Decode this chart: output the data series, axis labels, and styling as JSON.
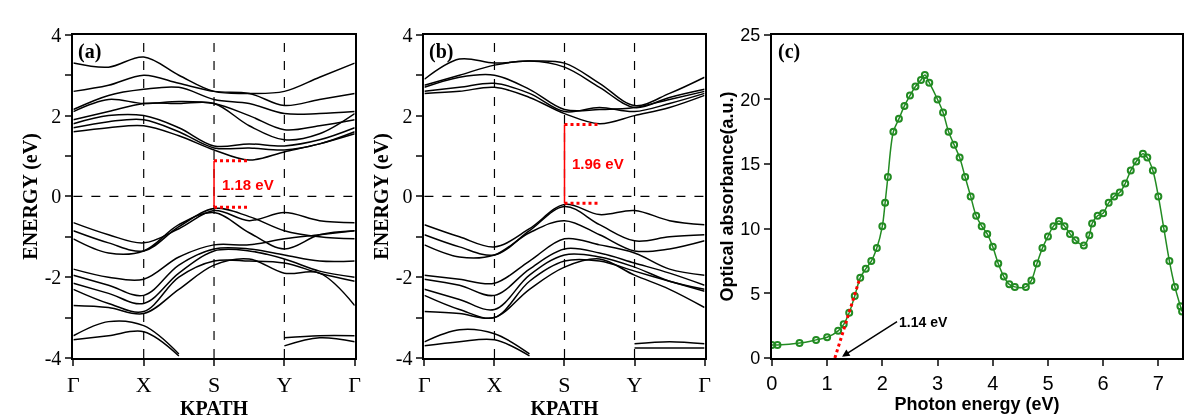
{
  "chart_data": [
    {
      "type": "line",
      "title": "(a)",
      "xlabel": "KPATH",
      "ylabel": "ENERGY (eV)",
      "categories": [
        "Γ",
        null,
        "X",
        null,
        "S",
        null,
        "Y",
        null,
        "Γ"
      ],
      "ylim": [
        -4,
        4
      ],
      "yticks": [
        -4,
        {
          "value": -3,
          "label": null
        },
        -2,
        {
          "value": -1,
          "label": null
        },
        0,
        {
          "value": 1,
          "label": null
        },
        2,
        {
          "value": 3,
          "label": null
        },
        4
      ],
      "grid": false,
      "series": [
        {
          "color": "#000000",
          "values": [
            3.3,
            3.2,
            3.45,
            3.0,
            2.6,
            2.55,
            2.6,
            2.95,
            3.3
          ]
        },
        {
          "color": "#000000",
          "values": [
            2.6,
            2.75,
            3.0,
            2.8,
            2.6,
            2.55,
            2.25,
            2.4,
            2.55
          ]
        },
        {
          "color": "#000000",
          "values": [
            2.15,
            2.5,
            2.65,
            2.7,
            2.4,
            2.3,
            2.05,
            2.05,
            2.1
          ]
        },
        {
          "color": "#000000",
          "values": [
            2.1,
            2.4,
            2.3,
            2.35,
            2.3,
            2.0,
            1.65,
            1.75,
            1.9
          ]
        },
        {
          "color": "#000000",
          "values": [
            1.9,
            2.1,
            2.3,
            2.3,
            2.3,
            1.75,
            1.4,
            1.55,
            2.05
          ]
        },
        {
          "color": "#000000",
          "values": [
            1.8,
            2.0,
            2.0,
            1.7,
            1.25,
            1.3,
            1.25,
            1.4,
            1.7
          ]
        },
        {
          "color": "#000000",
          "values": [
            1.7,
            1.85,
            1.9,
            1.6,
            1.2,
            1.2,
            1.15,
            1.3,
            1.6
          ]
        },
        {
          "color": "#000000",
          "values": [
            1.6,
            1.7,
            1.75,
            1.5,
            1.15,
            0.9,
            1.1,
            1.3,
            1.55
          ]
        },
        {
          "color": "#000000",
          "values": [
            -0.65,
            -0.95,
            -1.15,
            -0.8,
            -0.35,
            -0.6,
            -0.4,
            -0.6,
            -0.65
          ]
        },
        {
          "color": "#000000",
          "values": [
            -0.85,
            -1.15,
            -1.35,
            -0.75,
            -0.3,
            -0.5,
            -0.85,
            -1.0,
            -1.05
          ]
        },
        {
          "color": "#000000",
          "values": [
            -1.05,
            -1.4,
            -1.35,
            -0.7,
            -0.4,
            -0.9,
            -1.3,
            -0.95,
            -0.85
          ]
        },
        {
          "color": "#000000",
          "values": [
            -1.8,
            -2.0,
            -2.05,
            -1.5,
            -1.2,
            -1.2,
            -1.05,
            -0.95,
            -0.85
          ]
        },
        {
          "color": "#000000",
          "values": [
            -1.95,
            -2.2,
            -2.45,
            -1.7,
            -1.3,
            -1.3,
            -1.45,
            -1.6,
            -1.6
          ]
        },
        {
          "color": "#000000",
          "values": [
            -2.15,
            -2.4,
            -2.65,
            -1.9,
            -1.35,
            -1.35,
            -1.55,
            -1.85,
            -2.0
          ]
        },
        {
          "color": "#000000",
          "values": [
            -2.3,
            -2.65,
            -2.85,
            -2.0,
            -1.6,
            -1.6,
            -1.65,
            -1.9,
            -2.1
          ]
        },
        {
          "color": "#000000",
          "values": [
            -2.7,
            -2.75,
            -2.9,
            -2.3,
            -1.7,
            -1.55,
            -1.9,
            -1.9,
            -2.7
          ]
        },
        {
          "color": "#000000",
          "values": [
            -3.45,
            -3.1,
            -3.2,
            -3.9,
            null,
            null,
            -3.5,
            -3.45,
            -3.45
          ]
        },
        {
          "color": "#000000",
          "values": [
            -3.55,
            -3.45,
            -3.35,
            -3.95,
            null,
            null,
            -3.7,
            -3.5,
            -3.6
          ]
        },
        {
          "color": "#ff0000",
          "line_style": "dotted",
          "values": [
            null,
            null,
            null,
            null,
            0.88,
            0.88,
            null,
            null,
            null
          ]
        },
        {
          "color": "#ff0000",
          "line_style": "dotted",
          "values": [
            null,
            null,
            null,
            null,
            -0.27,
            -0.27,
            null,
            null,
            null
          ]
        },
        {
          "color": "#ff0000",
          "x": [
            "S",
            "S"
          ],
          "values": [
            -0.27,
            0.88
          ]
        }
      ],
      "ref_lines": [
        {
          "axis": "y",
          "value": 0,
          "line_style": "dashed"
        },
        {
          "axis": "x",
          "value": "X",
          "line_style": "dashed"
        },
        {
          "axis": "x",
          "value": "S",
          "line_style": "dashed"
        },
        {
          "axis": "x",
          "value": "Y",
          "line_style": "dashed"
        }
      ],
      "annotations": [
        "1.18 eV"
      ]
    },
    {
      "type": "line",
      "title": "(b)",
      "xlabel": "KPATH",
      "ylabel": "ENERGY (eV)",
      "categories": [
        "Γ",
        null,
        "X",
        null,
        "S",
        null,
        "Y",
        null,
        "Γ"
      ],
      "ylim": [
        -4,
        4
      ],
      "yticks": [
        -4,
        {
          "value": -3,
          "label": null
        },
        -2,
        {
          "value": -1,
          "label": null
        },
        0,
        {
          "value": 1,
          "label": null
        },
        2,
        {
          "value": 3,
          "label": null
        },
        4
      ],
      "grid": false,
      "series": [
        {
          "color": "#000000",
          "values": [
            2.9,
            3.4,
            3.3,
            3.35,
            3.3,
            2.8,
            2.25,
            2.55,
            2.95
          ]
        },
        {
          "color": "#000000",
          "values": [
            2.75,
            3.0,
            3.25,
            3.35,
            3.2,
            2.7,
            2.2,
            2.45,
            2.65
          ]
        },
        {
          "color": "#000000",
          "values": [
            2.7,
            2.95,
            3.0,
            2.65,
            2.15,
            2.15,
            2.2,
            2.4,
            2.6
          ]
        },
        {
          "color": "#000000",
          "values": [
            2.6,
            2.7,
            2.8,
            2.55,
            2.1,
            2.2,
            2.1,
            2.3,
            2.55
          ]
        },
        {
          "color": "#000000",
          "values": [
            2.55,
            2.6,
            2.7,
            2.45,
            2.05,
            1.8,
            2.0,
            2.2,
            2.5
          ]
        },
        {
          "color": "#000000",
          "values": [
            -0.7,
            -1.0,
            -1.25,
            -0.8,
            -0.2,
            -0.45,
            -0.35,
            -0.6,
            -0.7
          ]
        },
        {
          "color": "#000000",
          "values": [
            -0.95,
            -1.25,
            -1.45,
            -0.85,
            -0.25,
            -0.7,
            -1.1,
            -1.0,
            -0.95
          ]
        },
        {
          "color": "#000000",
          "values": [
            -1.2,
            -1.5,
            -1.45,
            -0.9,
            -0.6,
            -0.95,
            -1.35,
            -1.3,
            -1.1
          ]
        },
        {
          "color": "#000000",
          "values": [
            -1.95,
            -2.05,
            -2.15,
            -1.6,
            -1.05,
            -1.2,
            -1.4,
            -1.8,
            -1.95
          ]
        },
        {
          "color": "#000000",
          "values": [
            -2.05,
            -2.2,
            -2.45,
            -1.8,
            -1.3,
            -1.4,
            -1.65,
            -1.9,
            -2.2
          ]
        },
        {
          "color": "#000000",
          "values": [
            -2.3,
            -2.55,
            -2.8,
            -1.95,
            -1.45,
            -1.5,
            -1.75,
            -2.1,
            -2.3
          ]
        },
        {
          "color": "#000000",
          "values": [
            -2.45,
            -2.8,
            -3.0,
            -2.1,
            -1.6,
            -1.6,
            -1.85,
            -2.1,
            -2.35
          ]
        },
        {
          "color": "#000000",
          "values": [
            -2.85,
            -2.9,
            -3.0,
            -2.3,
            -1.75,
            -1.55,
            -1.95,
            -2.3,
            -2.75
          ]
        },
        {
          "color": "#000000",
          "values": [
            -3.6,
            -3.3,
            -3.4,
            -3.9,
            null,
            null,
            -3.65,
            -3.6,
            -3.65
          ]
        },
        {
          "color": "#000000",
          "values": [
            -3.7,
            -3.6,
            -3.55,
            -3.95,
            null,
            null,
            -3.75,
            -3.75,
            -3.75
          ]
        },
        {
          "color": "#ff0000",
          "line_style": "dotted",
          "values": [
            null,
            null,
            null,
            null,
            1.78,
            1.78,
            null,
            null,
            null
          ]
        },
        {
          "color": "#ff0000",
          "line_style": "dotted",
          "values": [
            null,
            null,
            null,
            null,
            -0.17,
            -0.17,
            null,
            null,
            null
          ]
        },
        {
          "color": "#ff0000",
          "x": [
            "S",
            "S"
          ],
          "values": [
            -0.17,
            1.78
          ]
        }
      ],
      "ref_lines": [
        {
          "axis": "y",
          "value": 0,
          "line_style": "dashed"
        },
        {
          "axis": "x",
          "value": "X",
          "line_style": "dashed"
        },
        {
          "axis": "x",
          "value": "S",
          "line_style": "dashed"
        },
        {
          "axis": "x",
          "value": "Y",
          "line_style": "dashed"
        }
      ],
      "annotations": [
        "1.96 eV"
      ]
    },
    {
      "type": "line",
      "title": "(c)",
      "xlabel": "Photon energy (eV)",
      "ylabel": "Optical absorbance(a.u.)",
      "x": [
        0,
        0.1,
        0.5,
        0.8,
        1.0,
        1.2,
        1.3,
        1.4,
        1.5,
        1.6,
        1.7,
        1.8,
        1.9,
        2.0,
        2.05,
        2.1,
        2.2,
        2.3,
        2.4,
        2.5,
        2.6,
        2.7,
        2.77,
        2.85,
        3.0,
        3.1,
        3.2,
        3.3,
        3.4,
        3.5,
        3.6,
        3.7,
        3.8,
        3.9,
        4.0,
        4.1,
        4.2,
        4.3,
        4.4,
        4.6,
        4.7,
        4.8,
        4.9,
        5.0,
        5.1,
        5.2,
        5.3,
        5.4,
        5.5,
        5.65,
        5.75,
        5.8,
        5.9,
        6.0,
        6.1,
        6.2,
        6.3,
        6.4,
        6.5,
        6.6,
        6.72,
        6.8,
        6.9,
        7.0,
        7.1,
        7.2,
        7.3,
        7.4,
        7.43
      ],
      "xlim": [
        0,
        7.43
      ],
      "xticks": [
        0,
        1,
        2,
        3,
        4,
        5,
        6,
        7
      ],
      "ylim": [
        0,
        25
      ],
      "yticks": [
        0,
        5,
        10,
        15,
        20,
        25
      ],
      "grid": false,
      "series": [
        {
          "color": "#228b22",
          "marker": "circle",
          "values": [
            1.0,
            1.0,
            1.15,
            1.4,
            1.6,
            2.1,
            2.6,
            3.5,
            4.8,
            6.2,
            6.9,
            7.5,
            8.5,
            10.2,
            12.0,
            14.0,
            17.5,
            18.5,
            19.5,
            20.3,
            21.0,
            21.5,
            21.9,
            21.3,
            20.0,
            19.0,
            17.5,
            16.5,
            15.5,
            14.0,
            12.5,
            11.0,
            10.2,
            9.6,
            8.6,
            7.3,
            6.3,
            5.7,
            5.5,
            5.5,
            6.0,
            7.3,
            8.5,
            9.4,
            10.2,
            10.6,
            10.2,
            9.6,
            9.1,
            8.7,
            9.5,
            10.4,
            11.0,
            11.2,
            12.0,
            12.5,
            12.8,
            13.5,
            14.5,
            15.2,
            15.8,
            15.5,
            14.5,
            12.5,
            10.0,
            7.5,
            5.5,
            4.0,
            3.6
          ]
        },
        {
          "color": "#ff0000",
          "line_style": "dotted",
          "x": [
            1.14,
            1.58
          ],
          "values": [
            0,
            6
          ]
        }
      ],
      "annotations": [
        {
          "text": "1.14 eV",
          "x": 1.27,
          "y": 0.1
        }
      ]
    }
  ]
}
